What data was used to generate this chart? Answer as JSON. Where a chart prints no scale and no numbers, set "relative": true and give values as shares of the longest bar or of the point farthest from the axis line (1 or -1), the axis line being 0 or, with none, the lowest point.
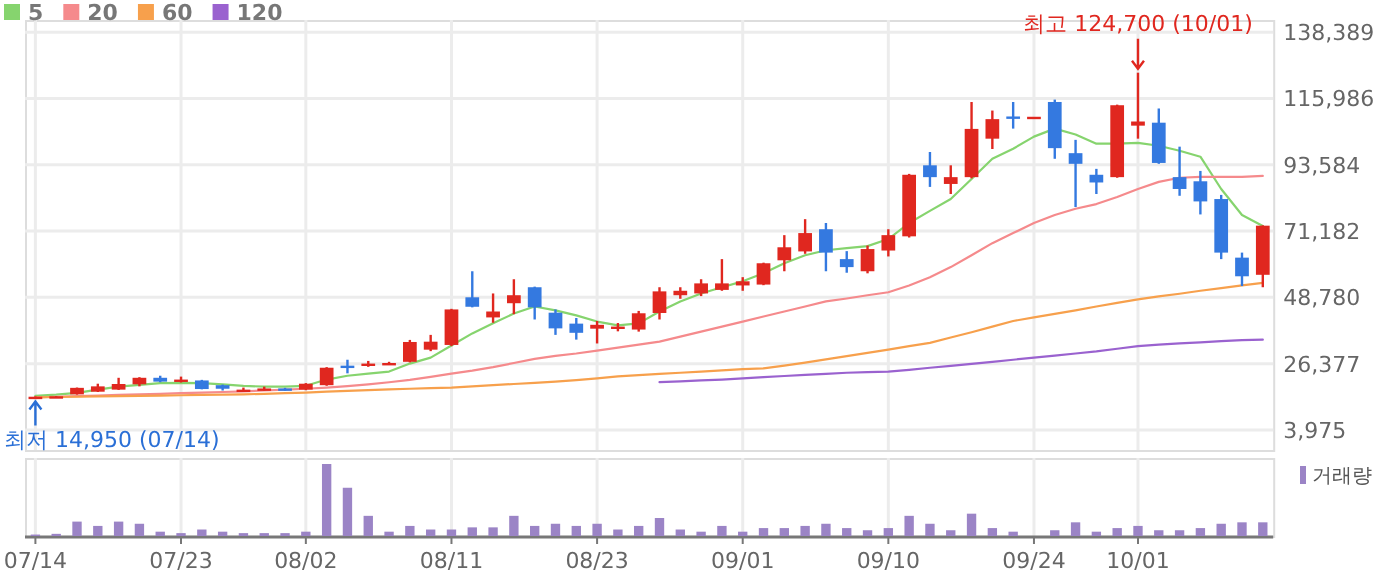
{
  "chart_data": [
    {
      "type": "candlestick",
      "categories": [
        "07/14",
        null,
        null,
        null,
        null,
        null,
        null,
        "07/23",
        null,
        null,
        null,
        null,
        null,
        "08/02",
        null,
        null,
        null,
        null,
        null,
        null,
        "08/11",
        null,
        null,
        null,
        null,
        null,
        null,
        "08/23",
        null,
        null,
        null,
        null,
        null,
        null,
        "09/01",
        null,
        null,
        null,
        null,
        null,
        null,
        "09/10",
        null,
        null,
        null,
        null,
        null,
        null,
        "09/24",
        null,
        null,
        null,
        null,
        "10/01",
        null,
        null,
        null,
        null,
        null,
        null
      ],
      "ohlc": [
        [
          15000,
          15300,
          14950,
          15200
        ],
        [
          15100,
          15400,
          15000,
          15350
        ],
        [
          16000,
          18300,
          15900,
          18200
        ],
        [
          16900,
          19600,
          16800,
          18700
        ],
        [
          17600,
          21600,
          17500,
          19500
        ],
        [
          19400,
          21800,
          18700,
          21600
        ],
        [
          21600,
          22300,
          20100,
          20300
        ],
        [
          20600,
          22000,
          20000,
          21000
        ],
        [
          20700,
          20900,
          17700,
          17800
        ],
        [
          19100,
          19300,
          17300,
          17900
        ],
        [
          17200,
          18300,
          16900,
          17600
        ],
        [
          17600,
          18600,
          17300,
          18000
        ],
        [
          18000,
          18200,
          17200,
          17400
        ],
        [
          17600,
          19800,
          17400,
          19600
        ],
        [
          19100,
          25200,
          18900,
          25000
        ],
        [
          25700,
          27700,
          23100,
          25000
        ],
        [
          25800,
          27300,
          25300,
          26400
        ],
        [
          26200,
          27000,
          26000,
          26600
        ],
        [
          27000,
          34400,
          26800,
          33700
        ],
        [
          31100,
          36100,
          30600,
          33800
        ],
        [
          32700,
          44900,
          32300,
          44700
        ],
        [
          48800,
          57600,
          45400,
          45600
        ],
        [
          42000,
          50100,
          40200,
          44000
        ],
        [
          46800,
          54900,
          43100,
          49500
        ],
        [
          52200,
          52400,
          41300,
          45400
        ],
        [
          43600,
          44700,
          36100,
          38300
        ],
        [
          39900,
          41800,
          34500,
          36800
        ],
        [
          38200,
          40800,
          33200,
          39500
        ],
        [
          38300,
          40100,
          37300,
          38900
        ],
        [
          37900,
          44200,
          37200,
          43400
        ],
        [
          43500,
          52200,
          41300,
          50800
        ],
        [
          49500,
          52200,
          48300,
          51000
        ],
        [
          50100,
          54900,
          49200,
          53500
        ],
        [
          51300,
          61700,
          51000,
          53500
        ],
        [
          52800,
          55600,
          51000,
          54200
        ],
        [
          53100,
          60500,
          52900,
          60300
        ],
        [
          61300,
          69800,
          57600,
          65700
        ],
        [
          64300,
          75200,
          63500,
          70500
        ],
        [
          71800,
          73900,
          57600,
          63900
        ],
        [
          61700,
          64400,
          57100,
          59000
        ],
        [
          57600,
          66300,
          56900,
          65100
        ],
        [
          64600,
          71800,
          62600,
          69800
        ],
        [
          69400,
          90500,
          69000,
          90200
        ],
        [
          93400,
          97900,
          86100,
          89400
        ],
        [
          87100,
          93400,
          83700,
          89400
        ],
        [
          89400,
          114800,
          89000,
          105700
        ],
        [
          102400,
          111900,
          98900,
          109000
        ],
        [
          109900,
          114800,
          105800,
          109500
        ],
        [
          109800,
          109800,
          109800,
          109800
        ],
        [
          114800,
          115600,
          95600,
          99200
        ],
        [
          97500,
          102000,
          79300,
          93900
        ],
        [
          90200,
          92200,
          83700,
          87600
        ],
        [
          89400,
          113900,
          89200,
          113700
        ],
        [
          106800,
          124700,
          102400,
          108200
        ],
        [
          107800,
          112600,
          93900,
          94200
        ],
        [
          89400,
          99700,
          83100,
          85400
        ],
        [
          88000,
          91500,
          76800,
          81200
        ],
        [
          82000,
          83400,
          61700,
          63900
        ],
        [
          62200,
          63900,
          52600,
          55900
        ],
        [
          56400,
          73100,
          52200,
          73000
        ]
      ],
      "series": [
        {
          "name": "5",
          "type": "line",
          "color": "#86d46e",
          "values": [
            15500,
            15900,
            16500,
            17600,
            18600,
            19200,
            19800,
            19900,
            19800,
            19400,
            18900,
            18600,
            18600,
            18900,
            21000,
            22300,
            23000,
            23700,
            26400,
            28400,
            32500,
            36600,
            40000,
            43300,
            45700,
            44400,
            42700,
            40600,
            39300,
            40000,
            44000,
            47400,
            50100,
            52200,
            54200,
            56900,
            60300,
            63000,
            64700,
            65400,
            66100,
            68500,
            73900,
            78000,
            82000,
            88800,
            95600,
            99000,
            103100,
            105800,
            103800,
            100700,
            100700,
            101000,
            100000,
            98300,
            96300,
            85400,
            76600,
            72900
          ]
        },
        {
          "name": "20",
          "type": "line",
          "color": "#f58a8c",
          "values": [
            15000,
            15200,
            15400,
            15600,
            15800,
            16000,
            16200,
            16400,
            16600,
            16800,
            17000,
            17300,
            17600,
            17900,
            18300,
            18800,
            19400,
            20100,
            20900,
            21900,
            23000,
            24000,
            25200,
            26600,
            28000,
            29000,
            29800,
            30800,
            31800,
            32800,
            33800,
            35500,
            37200,
            38900,
            40600,
            42300,
            44000,
            45700,
            47400,
            48400,
            49500,
            50500,
            52800,
            55600,
            59000,
            63000,
            67100,
            70500,
            73900,
            76600,
            78700,
            80300,
            82700,
            85400,
            87800,
            89200,
            89500,
            89500,
            89500,
            89800
          ]
        },
        {
          "name": "60",
          "type": "line",
          "color": "#f7a04c",
          "values": [
            15000,
            15100,
            15200,
            15300,
            15400,
            15500,
            15600,
            15700,
            15800,
            15900,
            16000,
            16200,
            16400,
            16600,
            16900,
            17200,
            17400,
            17700,
            17900,
            18100,
            18300,
            18700,
            19100,
            19500,
            19900,
            20300,
            20800,
            21400,
            22100,
            22500,
            22900,
            23300,
            23700,
            24100,
            24500,
            24800,
            25700,
            26700,
            27800,
            28900,
            30000,
            31100,
            32300,
            33400,
            35200,
            37000,
            38900,
            40800,
            42000,
            43200,
            44400,
            45700,
            46900,
            48100,
            49100,
            50000,
            51000,
            51900,
            52800,
            53700
          ]
        },
        {
          "name": "120",
          "type": "line",
          "color": "#9a62cf",
          "values": [
            null,
            null,
            null,
            null,
            null,
            null,
            null,
            null,
            null,
            null,
            null,
            null,
            null,
            null,
            null,
            null,
            null,
            null,
            null,
            null,
            null,
            null,
            null,
            null,
            null,
            null,
            null,
            null,
            null,
            null,
            20100,
            20400,
            20700,
            21000,
            21400,
            21800,
            22200,
            22600,
            22900,
            23300,
            23500,
            23700,
            24300,
            25000,
            25600,
            26300,
            27000,
            27700,
            28400,
            29100,
            29800,
            30500,
            31400,
            32300,
            32800,
            33200,
            33600,
            34000,
            34300,
            34500
          ]
        }
      ],
      "ylim": [
        -2800,
        142500
      ],
      "yticks": [
        {
          "value": 3975,
          "label": "3,975"
        },
        {
          "value": 26377,
          "label": "26,377"
        },
        {
          "value": 48780,
          "label": "48,780"
        },
        {
          "value": 71182,
          "label": "71,182"
        },
        {
          "value": 93584,
          "label": "93,584"
        },
        {
          "value": 115986,
          "label": "115,986"
        },
        {
          "value": 138389,
          "label": "138,389"
        }
      ],
      "grid": true,
      "tick_labels": "y",
      "legend": "top left",
      "annotations": [
        {
          "text": "최고 124,700 (10/01)",
          "x": "10/01",
          "y": 124700
        },
        {
          "text": "최저 14,950 (07/14)",
          "x": "07/14",
          "y": 14950
        }
      ]
    },
    {
      "type": "bar",
      "relative": true,
      "categories": [
        "07/14",
        null,
        null,
        null,
        null,
        null,
        null,
        "07/23",
        null,
        null,
        null,
        null,
        null,
        "08/02",
        null,
        null,
        null,
        null,
        null,
        null,
        "08/11",
        null,
        null,
        null,
        null,
        null,
        null,
        "08/23",
        null,
        null,
        null,
        null,
        null,
        null,
        "09/01",
        null,
        null,
        null,
        null,
        null,
        null,
        "09/10",
        null,
        null,
        null,
        null,
        null,
        null,
        "09/24",
        null,
        null,
        null,
        null,
        "10/01",
        null,
        null,
        null,
        null,
        null,
        null
      ],
      "series": [
        {
          "name": "거래량",
          "color": "#9b84c6",
          "values": [
            0.02,
            0.03,
            0.2,
            0.14,
            0.2,
            0.17,
            0.06,
            0.04,
            0.09,
            0.06,
            0.04,
            0.04,
            0.04,
            0.06,
            1,
            0.67,
            0.28,
            0.06,
            0.14,
            0.09,
            0.09,
            0.12,
            0.12,
            0.28,
            0.14,
            0.17,
            0.14,
            0.17,
            0.09,
            0.14,
            0.25,
            0.09,
            0.06,
            0.14,
            0.06,
            0.11,
            0.11,
            0.14,
            0.17,
            0.11,
            0.08,
            0.11,
            0.28,
            0.17,
            0.08,
            0.31,
            0.11,
            0.06,
            0,
            0.08,
            0.19,
            0.06,
            0.11,
            0.14,
            0.08,
            0.08,
            0.11,
            0.17,
            0.19,
            0.19
          ]
        }
      ],
      "grid": "x",
      "tick_labels": "x",
      "legend": "top right"
    }
  ]
}
